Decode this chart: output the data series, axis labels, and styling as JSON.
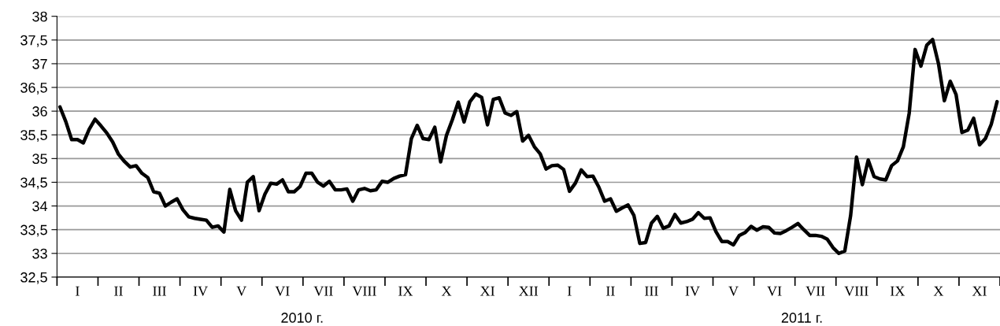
{
  "chart_data": {
    "type": "line",
    "annotations": [
      "2010 г.",
      "2011 г."
    ],
    "categories": [
      null,
      null,
      null,
      "I",
      null,
      null,
      null,
      null,
      null,
      null,
      "II",
      null,
      null,
      null,
      null,
      null,
      null,
      "III",
      null,
      null,
      null,
      null,
      null,
      null,
      "IV",
      null,
      null,
      null,
      null,
      null,
      null,
      "V",
      null,
      null,
      null,
      null,
      null,
      null,
      "VI",
      null,
      null,
      null,
      null,
      null,
      null,
      "VII",
      null,
      null,
      null,
      null,
      null,
      null,
      "VIII",
      null,
      null,
      null,
      null,
      null,
      null,
      "IX",
      null,
      null,
      null,
      null,
      null,
      null,
      "X",
      null,
      null,
      null,
      null,
      null,
      null,
      "XI",
      null,
      null,
      null,
      null,
      null,
      null,
      "XII",
      null,
      null,
      null,
      null,
      null,
      null,
      "I",
      null,
      null,
      null,
      null,
      null,
      null,
      "II",
      null,
      null,
      null,
      null,
      null,
      null,
      "III",
      null,
      null,
      null,
      null,
      null,
      null,
      "IV",
      null,
      null,
      null,
      null,
      null,
      null,
      "V",
      null,
      null,
      null,
      null,
      null,
      null,
      "VI",
      null,
      null,
      null,
      null,
      null,
      null,
      "VII",
      null,
      null,
      null,
      null,
      null,
      null,
      "VIII",
      null,
      null,
      null,
      null,
      null,
      null,
      "IX",
      null,
      null,
      null,
      null,
      null,
      null,
      "X",
      null,
      null,
      null,
      null,
      null,
      null,
      "XI",
      null,
      null,
      null
    ],
    "ylim": [
      32.5,
      38
    ],
    "yticks": [
      {
        "value": 32.5,
        "label": "32,5"
      },
      33,
      {
        "value": 33.5,
        "label": "33,5"
      },
      34,
      {
        "value": 34.5,
        "label": "34,5"
      },
      35,
      {
        "value": 35.5,
        "label": "35,5"
      },
      36,
      {
        "value": 36.5,
        "label": "36,5"
      },
      37,
      {
        "value": 37.5,
        "label": "37,5"
      },
      38
    ],
    "grid": "y",
    "legend": false,
    "marker": "none",
    "line_style": "solid",
    "series": [
      {
        "color": "#000000",
        "values": [
          36.09,
          35.78,
          35.4,
          35.4,
          35.33,
          35.62,
          35.83,
          35.69,
          35.54,
          35.35,
          35.09,
          34.94,
          34.82,
          34.85,
          34.69,
          34.6,
          34.3,
          34.27,
          34.0,
          34.08,
          34.15,
          33.92,
          33.77,
          33.74,
          33.72,
          33.7,
          33.55,
          33.58,
          33.45,
          34.35,
          33.9,
          33.7,
          34.5,
          34.62,
          33.9,
          34.25,
          34.48,
          34.46,
          34.55,
          34.3,
          34.3,
          34.41,
          34.69,
          34.69,
          34.5,
          34.42,
          34.52,
          34.34,
          34.34,
          34.36,
          34.1,
          34.34,
          34.37,
          34.32,
          34.34,
          34.52,
          34.5,
          34.58,
          34.63,
          34.66,
          35.42,
          35.7,
          35.42,
          35.4,
          35.66,
          34.93,
          35.49,
          35.82,
          36.19,
          35.77,
          36.2,
          36.36,
          36.29,
          35.71,
          36.25,
          36.28,
          35.96,
          35.91,
          35.99,
          35.37,
          35.49,
          35.25,
          35.1,
          34.78,
          34.85,
          34.86,
          34.77,
          34.31,
          34.48,
          34.76,
          34.62,
          34.63,
          34.4,
          34.1,
          34.15,
          33.89,
          33.96,
          34.02,
          33.8,
          33.21,
          33.23,
          33.64,
          33.78,
          33.53,
          33.58,
          33.82,
          33.64,
          33.67,
          33.72,
          33.86,
          33.74,
          33.75,
          33.46,
          33.25,
          33.25,
          33.18,
          33.38,
          33.44,
          33.57,
          33.49,
          33.56,
          33.55,
          33.43,
          33.42,
          33.48,
          33.55,
          33.63,
          33.5,
          33.38,
          33.38,
          33.36,
          33.3,
          33.12,
          33.0,
          33.05,
          33.8,
          35.03,
          34.45,
          34.97,
          34.62,
          34.57,
          34.55,
          34.85,
          34.95,
          35.25,
          35.96,
          37.3,
          36.95,
          37.39,
          37.51,
          37.0,
          36.22,
          36.63,
          36.35,
          35.55,
          35.6,
          35.85,
          35.29,
          35.42,
          35.72,
          36.2
        ]
      }
    ]
  }
}
